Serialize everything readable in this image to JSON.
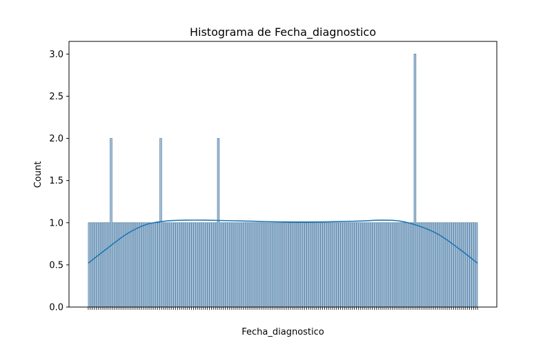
{
  "chart_data": {
    "type": "bar",
    "title": "Histograma de Fecha_diagnostico",
    "xlabel": "Fecha_diagnostico",
    "ylabel": "Count",
    "ylim": [
      0,
      3.15
    ],
    "yticks": [
      0.0,
      0.5,
      1.0,
      1.5,
      2.0,
      2.5,
      3.0
    ],
    "ytick_labels": [
      "0.0",
      "0.5",
      "1.0",
      "1.5",
      "2.0",
      "2.5",
      "3.0"
    ],
    "grid": false,
    "legend": "none",
    "bin_count": 196,
    "base_count": 1,
    "peaks": [
      {
        "bin": 11,
        "count": 2
      },
      {
        "bin": 36,
        "count": 2
      },
      {
        "bin": 65,
        "count": 2
      },
      {
        "bin": 164,
        "count": 3
      }
    ],
    "kde": {
      "x_frac": [
        0,
        0.05,
        0.1,
        0.15,
        0.2,
        0.25,
        0.3,
        0.4,
        0.5,
        0.6,
        0.7,
        0.75,
        0.8,
        0.85,
        0.9,
        0.95,
        1.0
      ],
      "y": [
        0.52,
        0.7,
        0.87,
        0.98,
        1.02,
        1.03,
        1.03,
        1.02,
        1.01,
        1.01,
        1.02,
        1.03,
        1.02,
        0.96,
        0.86,
        0.7,
        0.52
      ]
    },
    "colors": {
      "bar_fill": "#a5bfd6",
      "bar_edge": "#3d6f96",
      "kde_line": "#1f77b4"
    }
  }
}
